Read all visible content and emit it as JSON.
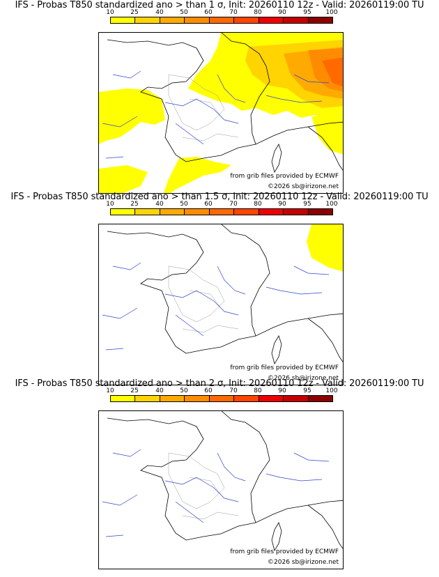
{
  "colorbar": {
    "labels": [
      "10",
      "25",
      "40",
      "50",
      "60",
      "70",
      "80",
      "90",
      "95",
      "100"
    ],
    "colors": [
      "#ffff00",
      "#ffd400",
      "#ffaa00",
      "#ff8c00",
      "#ff6a00",
      "#ff4500",
      "#ee0000",
      "#c40000",
      "#8b0000"
    ]
  },
  "panels": [
    {
      "title": "IFS - Probas T850  standardized ano > than 1 σ, Init: 20260110 12z - Valid: 20260119:00 TU",
      "source": "from grib files provided by ECMWF",
      "copyright": "©2026 sb@irizone.net"
    },
    {
      "title": "IFS - Probas T850  standardized ano > than 1.5 σ, Init: 20260110 12z - Valid: 20260119:00 TU",
      "source": "from grib files provided by ECMWF",
      "copyright": "©2026 sb@irizone.net"
    },
    {
      "title": "IFS - Probas T850  standardized ano > than 2 σ, Init: 20260110 12z - Valid: 20260119:00 TU",
      "source": "from grib files provided by ECMWF",
      "copyright": "©2026 sb@irizone.net"
    }
  ]
}
